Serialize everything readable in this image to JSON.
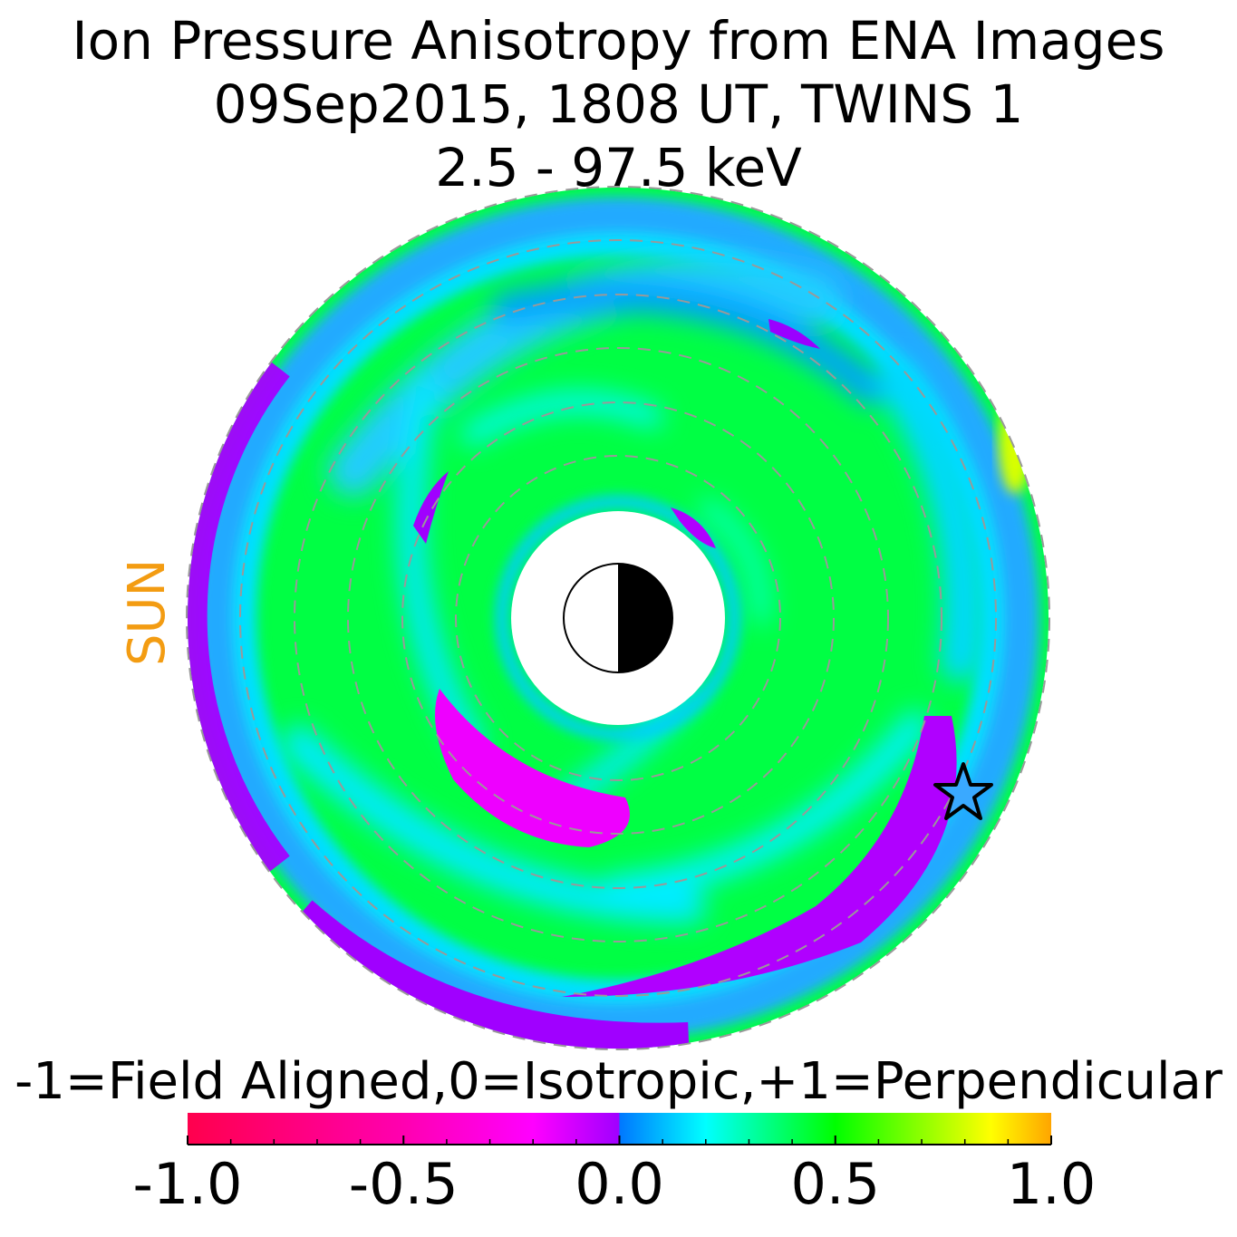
{
  "title": {
    "line1": "Ion Pressure Anisotropy from  ENA Images",
    "line2": "09Sep2015, 1808 UT,  TWINS 1",
    "line3": "2.5 - 97.5 keV"
  },
  "sun_label": "SUN",
  "colorbar": {
    "label": "-1=Field Aligned,0=Isotropic,+1=Perpendicular",
    "range": [
      -1.0,
      1.0
    ],
    "ticks": [
      "-1.0",
      "-0.5",
      "0.0",
      "0.5",
      "1.0"
    ],
    "tick_values": [
      -1.0,
      -0.5,
      0.0,
      0.5,
      1.0
    ],
    "colors": {
      "neg_end": "#ff004d",
      "neg_mid": "#ff00e6",
      "zero_neg": "#aa00ff",
      "zero_pos": "#0077ff",
      "cyan": "#00ffff",
      "green": "#00ff00",
      "yellow": "#ffff00",
      "pos_end": "#ffa500"
    }
  },
  "chart_data": {
    "type": "heatmap",
    "title": "Ion Pressure Anisotropy from  ENA Images",
    "projection": "polar equatorial map, sun to the left",
    "colorbar_range": [
      -1.0,
      1.0
    ],
    "dominant_value": "about 0.5 (green) across most of the ring current",
    "features": [
      {
        "name": "field-aligned band dawn/post-midnight",
        "value": "about -0.1 (purple)"
      },
      {
        "name": "field-aligned patch inner dusk side",
        "value": "about -0.2 (magenta)"
      },
      {
        "name": "outer boundary strip",
        "value": "about 0.0 (purple)"
      },
      {
        "name": "perpendicular patch far right edge",
        "value": "about 0.8 (yellow)"
      }
    ],
    "dashed_circles": 7,
    "marker": "star, lower right",
    "earth_symbol": "day/night circle at center"
  }
}
